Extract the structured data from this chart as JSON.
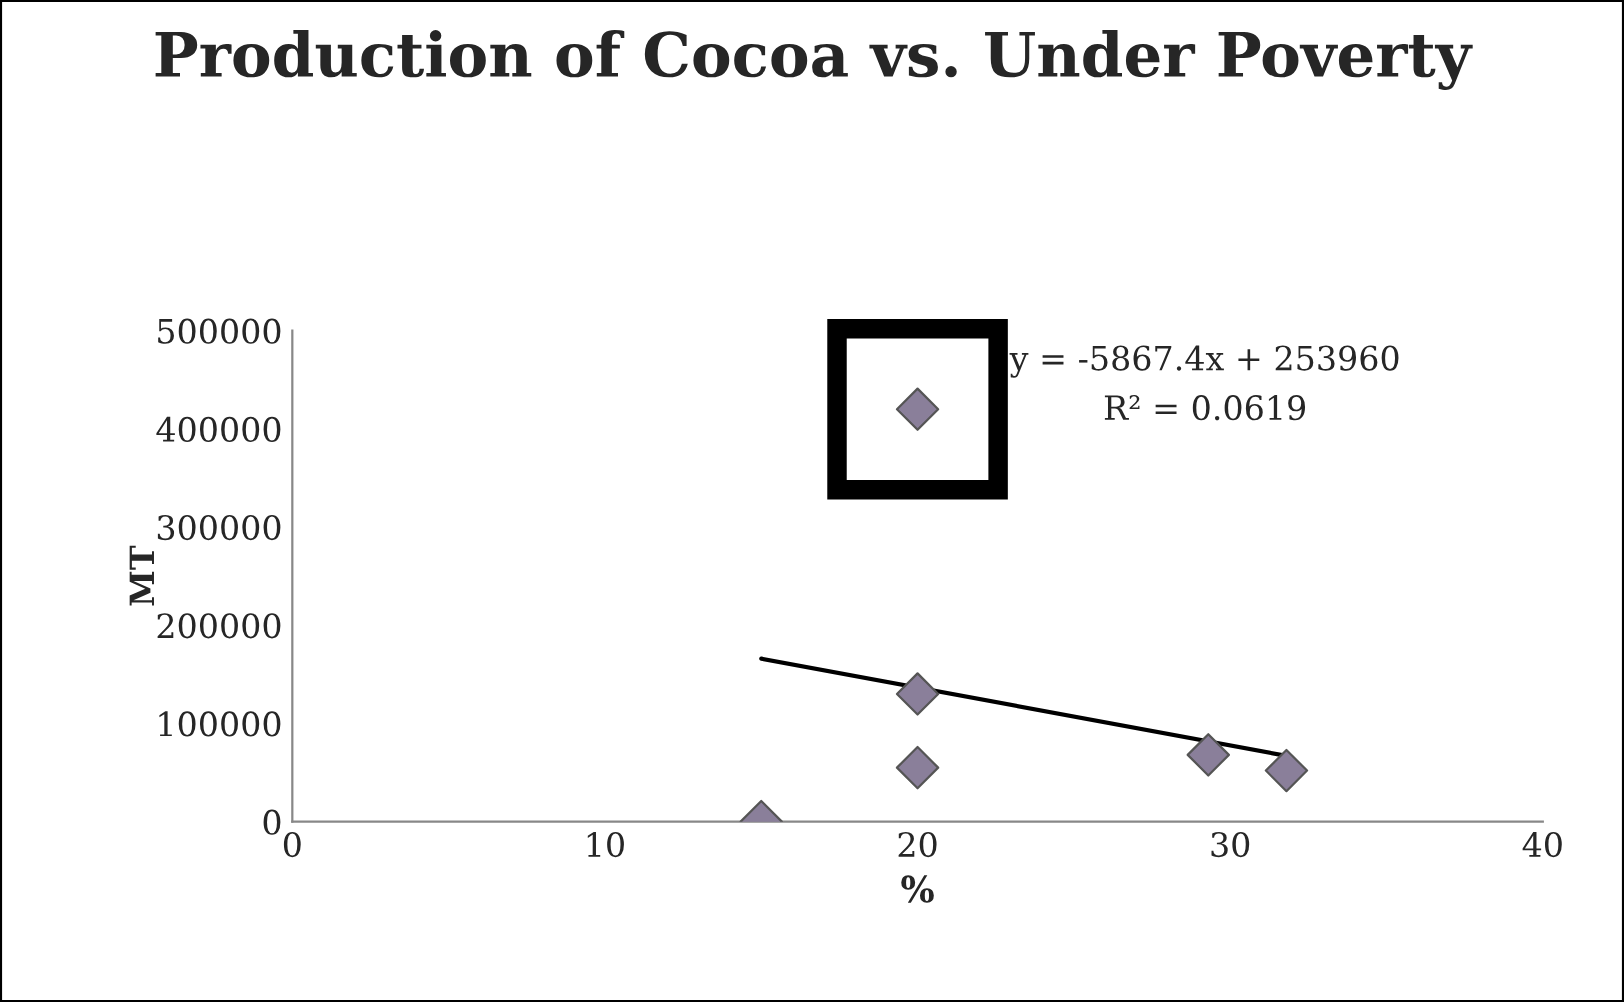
{
  "chart_data": {
    "type": "scatter",
    "title": "Production of Cocoa vs. Under Poverty",
    "xlabel": "%",
    "ylabel": "MT",
    "series": [
      {
        "color": "#8a7f9a",
        "x": [
          15,
          20,
          20,
          20,
          29.3,
          31.8
        ],
        "values": [
          0,
          420000,
          130000,
          55000,
          68000,
          52000
        ],
        "marker": "diamond"
      },
      {
        "type": "line",
        "color": "#000000",
        "x": [
          15,
          31.8
        ],
        "values": [
          166000,
          67000
        ],
        "marker": "none"
      }
    ],
    "annotations": [
      "y = -5867.4x + 253960",
      "R² = 0.0619"
    ],
    "xlim": [
      0,
      40
    ],
    "xticks": [
      0,
      10,
      20,
      30,
      40
    ],
    "ylim": [
      0,
      500000
    ],
    "yticks": [
      0,
      100000,
      200000,
      300000,
      400000,
      500000
    ],
    "grid": false,
    "legend": false
  }
}
